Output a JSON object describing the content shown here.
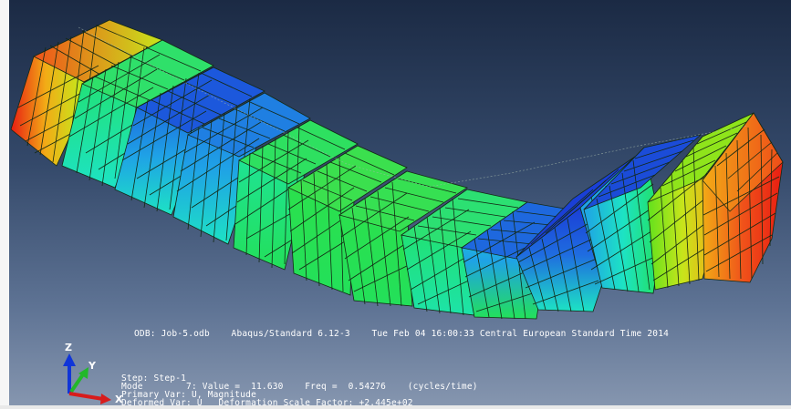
{
  "header": {
    "odb_line": "ODB: Job-5.odb    Abaqus/Standard 6.12-3    Tue Feb 04 16:00:33 Central European Standard Time 2014"
  },
  "step_info": {
    "step": "Step: Step-1",
    "mode": "Mode        7: Value =  11.630    Freq =  0.54276    (cycles/time)",
    "primary": "Primary Var: U, Magnitude",
    "deformed": "Deformed Var: U   Deformation Scale Factor: +2.445e+02"
  },
  "triad": {
    "z": "Z",
    "y": "Y",
    "x": "X"
  },
  "legend_colors": [
    "#1a3fd6",
    "#1fa2e6",
    "#1de3c4",
    "#23e05a",
    "#62e21d",
    "#c7e51b",
    "#f2ab16",
    "#f0531a",
    "#e81d12"
  ],
  "block_colors": {
    "1": [
      "#e81d12",
      "#f2ab16"
    ],
    "2": [
      "#23e05a",
      "#1de3c4"
    ],
    "3": [
      "#1a3fd6",
      "#1fa2e6"
    ],
    "4": [
      "#1fa2e6",
      "#1de3c4"
    ],
    "5": [
      "#23e05a",
      "#35e03a"
    ],
    "6": [
      "#23e05a",
      "#23e05a"
    ],
    "7": [
      "#23e05a",
      "#23e05a"
    ],
    "8": [
      "#23e05a",
      "#1de3a8"
    ],
    "9": [
      "#1a3fd6",
      "#1de3c4"
    ],
    "10": [
      "#1a3fd6",
      "#1fa2e6"
    ],
    "11": [
      "#1fa2e6",
      "#23e05a"
    ],
    "12": [
      "#c7e51b",
      "#f2ab16"
    ],
    "13": [
      "#f0531a",
      "#e81d12"
    ]
  }
}
